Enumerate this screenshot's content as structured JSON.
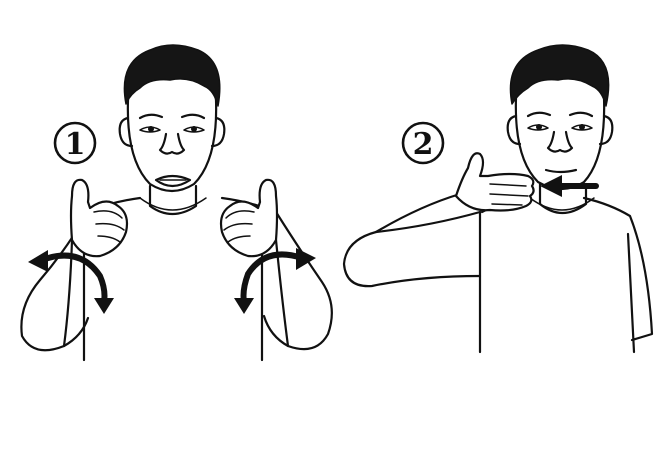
{
  "steps": [
    {
      "number": "1"
    },
    {
      "number": "2"
    }
  ],
  "colors": {
    "ink": "#111111",
    "background": "#ffffff"
  }
}
